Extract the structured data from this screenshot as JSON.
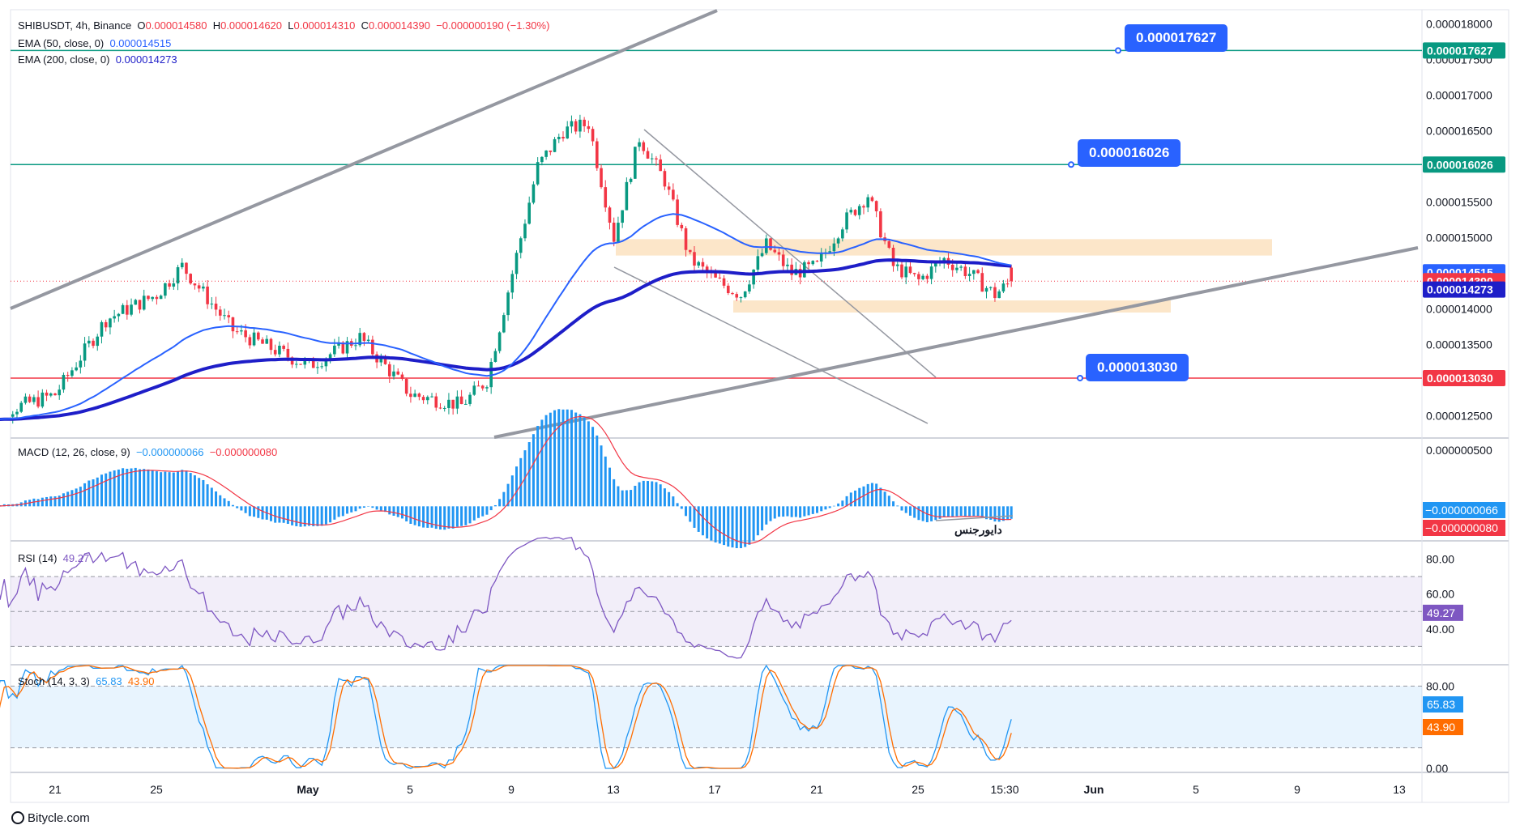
{
  "header": {
    "symbol": "SHIBUSDT, 4h, Binance",
    "o_label": "O",
    "o": "0.000014580",
    "h_label": "H",
    "h": "0.000014620",
    "l_label": "L",
    "l": "0.000014310",
    "c_label": "C",
    "c": "0.000014390",
    "change": "−0.000000190 (−1.30%)"
  },
  "ema50": {
    "label": "EMA (50, close, 0)",
    "value": "0.000014515"
  },
  "ema200": {
    "label": "EMA (200, close, 0)",
    "value": "0.000014273"
  },
  "macd": {
    "label": "MACD (12, 26, close, 9)",
    "macd": "−0.000000066",
    "signal": "−0.000000080",
    "annotation": "دایورجنس"
  },
  "rsi": {
    "label": "RSI (14)",
    "value": "49.27"
  },
  "stoch": {
    "label": "Stoch (14, 3, 3)",
    "k": "65.83",
    "d": "43.90"
  },
  "callouts": [
    "0.000017627",
    "0.000016026",
    "0.000013030"
  ],
  "price_axis": [
    "0.000018000",
    "0.000017500",
    "0.000017000",
    "0.000016500",
    "0.000016000",
    "0.000015500",
    "0.000015000",
    "0.000014500",
    "0.000014000",
    "0.000013500",
    "0.000013000",
    "0.000012500"
  ],
  "price_tags": [
    {
      "text": "0.000017627",
      "color": "#089981"
    },
    {
      "text": "0.000016026",
      "color": "#089981"
    },
    {
      "text": "0.000014515",
      "color": "#2962ff"
    },
    {
      "text": "0.000014390",
      "color": "#f23645"
    },
    {
      "text": "0.000014273",
      "color": "#1e1ec8"
    },
    {
      "text": "0.000013030",
      "color": "#f23645"
    }
  ],
  "macd_axis": [
    "0.000000500",
    "0.000000000"
  ],
  "macd_tags": [
    {
      "text": "−0.000000066",
      "color": "#2196f3"
    },
    {
      "text": "−0.000000080",
      "color": "#f23645"
    }
  ],
  "rsi_axis": [
    "80.00",
    "60.00",
    "40.00"
  ],
  "rsi_tag": {
    "text": "49.27",
    "color": "#7e57c2"
  },
  "stoch_axis": [
    "80.00",
    "0.00"
  ],
  "stoch_tags": [
    {
      "text": "65.83",
      "color": "#2196f3"
    },
    {
      "text": "43.90",
      "color": "#ff6d00"
    }
  ],
  "time_axis": [
    "21",
    "25",
    "May",
    "5",
    "9",
    "13",
    "17",
    "21",
    "25",
    "15:30",
    "Jun",
    "5",
    "9",
    "13"
  ],
  "footer": "Bitycle.com",
  "chart_data": {
    "type": "candlestick",
    "series_anchor_closes": [
      {
        "x": "Apr 18",
        "y": 1.245e-05
      },
      {
        "x": "Apr 21",
        "y": 1.28e-05
      },
      {
        "x": "Apr 23",
        "y": 1.385e-05
      },
      {
        "x": "Apr 25",
        "y": 1.42e-05
      },
      {
        "x": "Apr 26",
        "y": 1.46e-05
      },
      {
        "x": "Apr 28",
        "y": 1.37e-05
      },
      {
        "x": "May 1",
        "y": 1.32e-05
      },
      {
        "x": "May 3",
        "y": 1.36e-05
      },
      {
        "x": "May 5",
        "y": 1.28e-05
      },
      {
        "x": "May 7",
        "y": 1.265e-05
      },
      {
        "x": "May 8",
        "y": 1.3e-05
      },
      {
        "x": "May 9",
        "y": 1.45e-05
      },
      {
        "x": "May 10",
        "y": 1.6e-05
      },
      {
        "x": "May 11",
        "y": 1.65e-05
      },
      {
        "x": "May 12",
        "y": 1.66e-05
      },
      {
        "x": "May 13",
        "y": 1.5e-05
      },
      {
        "x": "May 14",
        "y": 1.64e-05
      },
      {
        "x": "May 15",
        "y": 1.58e-05
      },
      {
        "x": "May 16",
        "y": 1.47e-05
      },
      {
        "x": "May 17",
        "y": 1.44e-05
      },
      {
        "x": "May 18",
        "y": 1.42e-05
      },
      {
        "x": "May 19",
        "y": 1.49e-05
      },
      {
        "x": "May 20",
        "y": 1.45e-05
      },
      {
        "x": "May 21",
        "y": 1.46e-05
      },
      {
        "x": "May 22",
        "y": 1.52e-05
      },
      {
        "x": "May 23",
        "y": 1.56e-05
      },
      {
        "x": "May 24",
        "y": 1.46e-05
      },
      {
        "x": "May 25",
        "y": 1.44e-05
      },
      {
        "x": "May 26",
        "y": 1.47e-05
      },
      {
        "x": "May 27",
        "y": 1.45e-05
      },
      {
        "x": "May 28",
        "y": 1.42e-05
      },
      {
        "x": "May 28 15:30",
        "y": 1.439e-05
      }
    ],
    "horizontal_levels": [
      1.7627e-05,
      1.6026e-05,
      1.303e-05
    ],
    "ylim": [
      1.22e-05,
      1.82e-05
    ]
  }
}
